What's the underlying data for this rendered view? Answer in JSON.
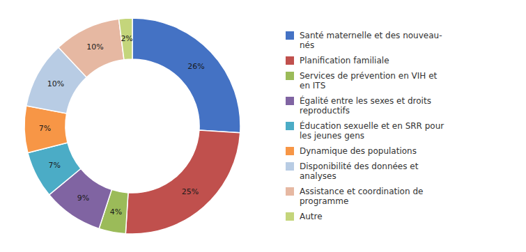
{
  "chart_data": {
    "type": "donut",
    "categories": [
      "Santé maternelle et des nouveau-\nnés",
      "Planification familiale",
      "Services de prévention en VIH et\nen ITS",
      "Égalité entre les sexes et droits\nreproductifs",
      "Éducation sexuelle et en SRR pour\nles jeunes gens",
      "Dynamique des populations",
      "Disponibilité des données et\nanalyses",
      "Assistance et coordination de\nprogramme",
      "Autre"
    ],
    "values": [
      26,
      25,
      4,
      9,
      7,
      7,
      10,
      10,
      2
    ],
    "value_labels": [
      "26%",
      "25%",
      "4%",
      "9%",
      "7%",
      "7%",
      "10%",
      "10%",
      "2%"
    ],
    "colors": [
      "#4472C4",
      "#C0504D",
      "#9BBB59",
      "#8064A2",
      "#4BACC6",
      "#F79646",
      "#B8CCE4",
      "#E6B8A2",
      "#C4D57B"
    ],
    "data_labels": true,
    "legend": "right"
  }
}
